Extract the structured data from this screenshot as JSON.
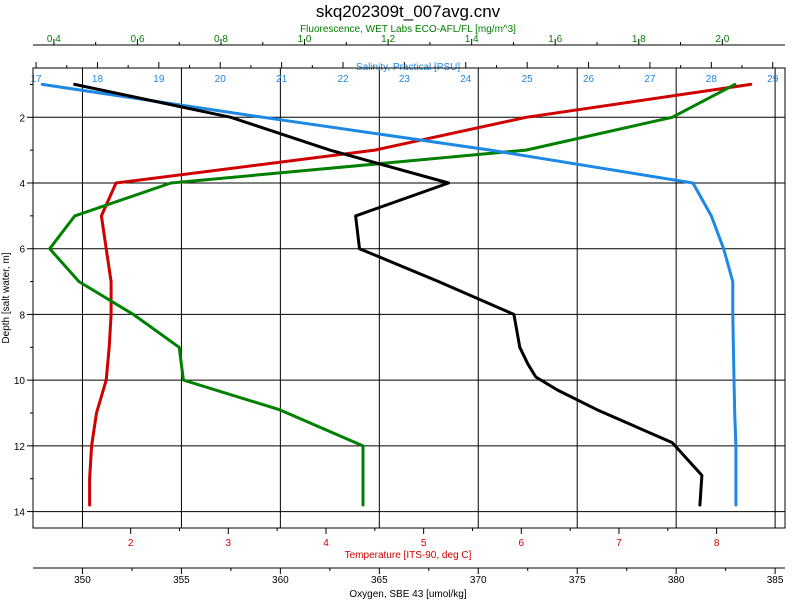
{
  "chart_data": {
    "type": "line",
    "title": "skq202309t_007avg.cnv",
    "ylabel": "Depth [salt water, m]",
    "y_axis": {
      "range": [
        0.5,
        14.5
      ],
      "inverted": true,
      "ticks": [
        2,
        4,
        6,
        8,
        10,
        12,
        14
      ]
    },
    "grid": true,
    "axes": {
      "fluorescence": {
        "label": "Fluorescence, WET Labs ECO-AFL/FL [mg/m^3]",
        "position": "top-outer",
        "color": "#008000",
        "range": [
          0.35,
          2.15
        ],
        "ticks": [
          0.4,
          0.6,
          0.8,
          1.0,
          1.2,
          1.4,
          1.6,
          1.8,
          2.0
        ],
        "tick_labels": [
          "0.4",
          "0.6",
          "0.8",
          "1.0",
          "1.2",
          "1.4",
          "1.6",
          "1.8",
          "2.0"
        ]
      },
      "salinity": {
        "label": "Salinity, Practical [PSU]",
        "position": "top-inner",
        "color": "#1e88e5",
        "range": [
          16.95,
          29.2
        ],
        "ticks": [
          17,
          18,
          19,
          20,
          21,
          22,
          23,
          24,
          25,
          26,
          27,
          28,
          29
        ],
        "tick_labels": [
          "17",
          "18",
          "19",
          "20",
          "21",
          "22",
          "23",
          "24",
          "25",
          "26",
          "27",
          "28",
          "29"
        ]
      },
      "temperature": {
        "label": "Temperature [ITS-90, deg C]",
        "position": "bottom-inner",
        "color": "#d00000",
        "range": [
          1.0,
          8.7
        ],
        "ticks": [
          2,
          3,
          4,
          5,
          6,
          7,
          8
        ],
        "tick_labels": [
          "2",
          "3",
          "4",
          "5",
          "6",
          "7",
          "8"
        ]
      },
      "oxygen": {
        "label": "Oxygen, SBE 43 [umol/kg]",
        "position": "bottom-outer",
        "color": "#000000",
        "range": [
          347.5,
          385.5
        ],
        "ticks": [
          350,
          355,
          360,
          365,
          370,
          375,
          380,
          385
        ],
        "tick_labels": [
          "350",
          "355",
          "360",
          "365",
          "370",
          "375",
          "380",
          "385"
        ]
      }
    },
    "series": [
      {
        "name": "Temperature",
        "axis": "temperature",
        "color": "#d00000",
        "points": [
          [
            8.35,
            1.0
          ],
          [
            6.05,
            2.0
          ],
          [
            4.5,
            3.0
          ],
          [
            1.85,
            4.0
          ],
          [
            1.7,
            5.0
          ],
          [
            1.75,
            6.0
          ],
          [
            1.8,
            7.0
          ],
          [
            1.8,
            8.0
          ],
          [
            1.78,
            9.0
          ],
          [
            1.75,
            10.0
          ],
          [
            1.65,
            11.0
          ],
          [
            1.6,
            12.0
          ],
          [
            1.58,
            13.0
          ],
          [
            1.58,
            13.8
          ]
        ]
      },
      {
        "name": "Fluorescence",
        "axis": "fluorescence",
        "color": "#008000",
        "points": [
          [
            2.03,
            1.0
          ],
          [
            1.88,
            2.0
          ],
          [
            1.53,
            3.0
          ],
          [
            0.68,
            4.0
          ],
          [
            0.45,
            5.0
          ],
          [
            0.39,
            6.0
          ],
          [
            0.46,
            7.0
          ],
          [
            0.59,
            8.0
          ],
          [
            0.7,
            9.0
          ],
          [
            0.71,
            10.0
          ],
          [
            0.94,
            10.9
          ],
          [
            1.14,
            12.0
          ],
          [
            1.14,
            13.0
          ],
          [
            1.14,
            13.8
          ]
        ]
      },
      {
        "name": "Salinity",
        "axis": "salinity",
        "color": "#1e88e5",
        "points": [
          [
            17.1,
            1.0
          ],
          [
            20.7,
            2.0
          ],
          [
            24.4,
            3.0
          ],
          [
            27.7,
            4.0
          ],
          [
            28.0,
            5.0
          ],
          [
            28.2,
            6.0
          ],
          [
            28.35,
            7.0
          ],
          [
            28.35,
            8.0
          ],
          [
            28.36,
            9.0
          ],
          [
            28.37,
            10.0
          ],
          [
            28.38,
            11.0
          ],
          [
            28.4,
            12.0
          ],
          [
            28.4,
            13.0
          ],
          [
            28.4,
            13.8
          ]
        ]
      },
      {
        "name": "Oxygen",
        "axis": "oxygen",
        "color": "#000000",
        "points": [
          [
            349.6,
            1.0
          ],
          [
            357.5,
            2.0
          ],
          [
            362.5,
            3.0
          ],
          [
            368.5,
            4.0
          ],
          [
            363.8,
            5.0
          ],
          [
            364.0,
            6.0
          ],
          [
            368.0,
            7.0
          ],
          [
            371.8,
            8.0
          ],
          [
            372.1,
            9.0
          ],
          [
            372.5,
            9.5
          ],
          [
            372.9,
            9.9
          ],
          [
            374.0,
            10.3
          ],
          [
            376.0,
            10.9
          ],
          [
            379.8,
            11.9
          ],
          [
            381.3,
            12.9
          ],
          [
            381.2,
            13.8
          ]
        ]
      }
    ]
  }
}
